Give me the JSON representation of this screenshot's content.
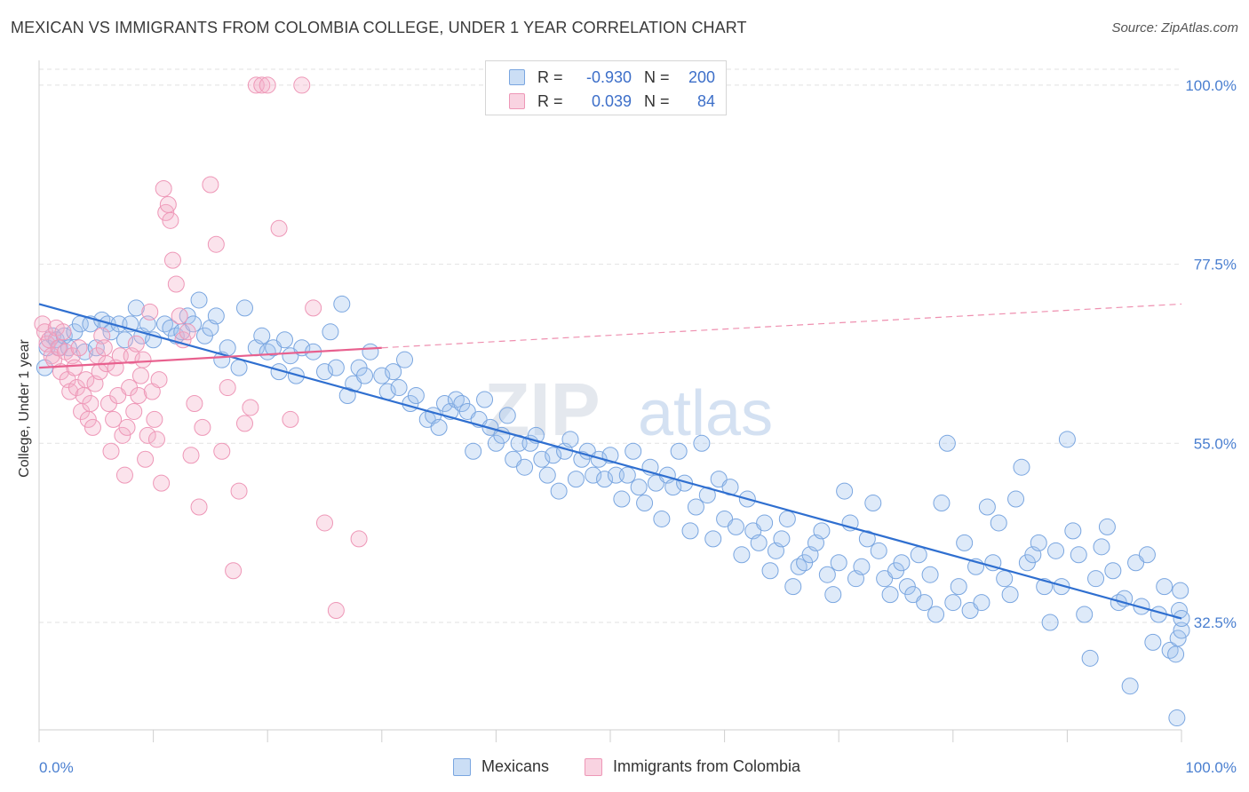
{
  "title": "MEXICAN VS IMMIGRANTS FROM COLOMBIA COLLEGE, UNDER 1 YEAR CORRELATION CHART",
  "source": "Source: ZipAtlas.com",
  "watermark": {
    "part1": "ZIP",
    "part2": "atlas"
  },
  "legend": {
    "rows": [
      {
        "r_label": "R =",
        "r_value": "-0.930",
        "n_label": "N =",
        "n_value": "200"
      },
      {
        "r_label": "R =",
        "r_value": "0.039",
        "n_label": "N =",
        "n_value": "84"
      }
    ]
  },
  "chart_data": {
    "type": "scatter",
    "title": "MEXICAN VS IMMIGRANTS FROM COLOMBIA COLLEGE, UNDER 1 YEAR CORRELATION CHART",
    "xlabel": "",
    "ylabel": "College, Under 1 year",
    "xlim": [
      0,
      100
    ],
    "ylim": [
      19,
      102
    ],
    "x_tick_labels": [
      "0.0%",
      "100.0%"
    ],
    "y_ticks": [
      {
        "value": 100,
        "label": "100.0%"
      },
      {
        "value": 77.5,
        "label": "77.5%"
      },
      {
        "value": 55,
        "label": "55.0%"
      },
      {
        "value": 32.5,
        "label": "32.5%"
      }
    ],
    "grid": true,
    "legend_position": "bottom-center",
    "series": [
      {
        "name": "Mexicans",
        "color": "#8db4e8",
        "fill": "rgba(160,194,237,0.35)",
        "stroke": "#7aa6e0",
        "R": -0.93,
        "N": 200,
        "trend": {
          "x0": 0,
          "y0": 72.5,
          "x1": 100,
          "y1": 33,
          "color": "#2f6fd0"
        },
        "points": [
          [
            0.5,
            64.5
          ],
          [
            0.7,
            67
          ],
          [
            1.2,
            68.5
          ],
          [
            1.5,
            68
          ],
          [
            1.8,
            67
          ],
          [
            2.2,
            68.5
          ],
          [
            2.6,
            67
          ],
          [
            3.1,
            69
          ],
          [
            3.6,
            70
          ],
          [
            4.0,
            66.5
          ],
          [
            4.5,
            70
          ],
          [
            5,
            67
          ],
          [
            5.5,
            70.5
          ],
          [
            6,
            70
          ],
          [
            6.3,
            69
          ],
          [
            7,
            70
          ],
          [
            7.5,
            68
          ],
          [
            8,
            70
          ],
          [
            8.5,
            72
          ],
          [
            9,
            68.5
          ],
          [
            9.5,
            70
          ],
          [
            10,
            68
          ],
          [
            11,
            70
          ],
          [
            11.5,
            69.5
          ],
          [
            12,
            68.5
          ],
          [
            12.5,
            69
          ],
          [
            13,
            71
          ],
          [
            13.5,
            70
          ],
          [
            14,
            73
          ],
          [
            14.5,
            68.5
          ],
          [
            15,
            69.5
          ],
          [
            15.5,
            71
          ],
          [
            16,
            65.5
          ],
          [
            16.5,
            67
          ],
          [
            17.5,
            64.5
          ],
          [
            18,
            72
          ],
          [
            19,
            67
          ],
          [
            19.5,
            68.5
          ],
          [
            20,
            66.5
          ],
          [
            20.5,
            67
          ],
          [
            21,
            64
          ],
          [
            21.5,
            68
          ],
          [
            22,
            66
          ],
          [
            22.5,
            63.5
          ],
          [
            23,
            67
          ],
          [
            24,
            66.5
          ],
          [
            25,
            64
          ],
          [
            25.5,
            69
          ],
          [
            26,
            64.5
          ],
          [
            26.5,
            72.5
          ],
          [
            27,
            61
          ],
          [
            27.5,
            62.5
          ],
          [
            28,
            64.5
          ],
          [
            28.5,
            63.5
          ],
          [
            29,
            66.5
          ],
          [
            30,
            63.5
          ],
          [
            30.5,
            61.5
          ],
          [
            31,
            64
          ],
          [
            31.5,
            62
          ],
          [
            32,
            65.5
          ],
          [
            32.5,
            60
          ],
          [
            33,
            61
          ],
          [
            34,
            58
          ],
          [
            34.5,
            58.5
          ],
          [
            35,
            57
          ],
          [
            35.5,
            60
          ],
          [
            36,
            59
          ],
          [
            36.5,
            60.5
          ],
          [
            37,
            60
          ],
          [
            37.5,
            59
          ],
          [
            38,
            54
          ],
          [
            38.5,
            58
          ],
          [
            39,
            60.5
          ],
          [
            39.5,
            57
          ],
          [
            40,
            55
          ],
          [
            40.5,
            56
          ],
          [
            41,
            58.5
          ],
          [
            41.5,
            53
          ],
          [
            42,
            55
          ],
          [
            42.5,
            52
          ],
          [
            43,
            55
          ],
          [
            43.5,
            56
          ],
          [
            44,
            53
          ],
          [
            44.5,
            51
          ],
          [
            45,
            53.5
          ],
          [
            45.5,
            49
          ],
          [
            46,
            54
          ],
          [
            46.5,
            55.5
          ],
          [
            47,
            50.5
          ],
          [
            47.5,
            53
          ],
          [
            48,
            54
          ],
          [
            48.5,
            51
          ],
          [
            49,
            53
          ],
          [
            49.5,
            50.5
          ],
          [
            50,
            53.5
          ],
          [
            50.5,
            51
          ],
          [
            51,
            48
          ],
          [
            51.5,
            51
          ],
          [
            52,
            54
          ],
          [
            52.5,
            49.5
          ],
          [
            53,
            47.5
          ],
          [
            53.5,
            52
          ],
          [
            54,
            50
          ],
          [
            54.5,
            45.5
          ],
          [
            55,
            51
          ],
          [
            55.5,
            49.5
          ],
          [
            56,
            54
          ],
          [
            56.5,
            50
          ],
          [
            57,
            44
          ],
          [
            57.5,
            47
          ],
          [
            58,
            55
          ],
          [
            58.5,
            48.5
          ],
          [
            59,
            43
          ],
          [
            59.5,
            50.5
          ],
          [
            60,
            45.5
          ],
          [
            60.5,
            49.5
          ],
          [
            61,
            44.5
          ],
          [
            61.5,
            41
          ],
          [
            62,
            48
          ],
          [
            62.5,
            44
          ],
          [
            63,
            42.5
          ],
          [
            63.5,
            45
          ],
          [
            64,
            39
          ],
          [
            64.5,
            41.5
          ],
          [
            65,
            43
          ],
          [
            65.5,
            45.5
          ],
          [
            66,
            37
          ],
          [
            66.5,
            39.5
          ],
          [
            67,
            40
          ],
          [
            67.5,
            41
          ],
          [
            68,
            42.5
          ],
          [
            68.5,
            44
          ],
          [
            69,
            38.5
          ],
          [
            69.5,
            36
          ],
          [
            70,
            40
          ],
          [
            70.5,
            49
          ],
          [
            71,
            45
          ],
          [
            71.5,
            38
          ],
          [
            72,
            39.5
          ],
          [
            72.5,
            43
          ],
          [
            73,
            47.5
          ],
          [
            73.5,
            41.5
          ],
          [
            74,
            38
          ],
          [
            74.5,
            36
          ],
          [
            75,
            39
          ],
          [
            75.5,
            40
          ],
          [
            76,
            37
          ],
          [
            76.5,
            36
          ],
          [
            77,
            41
          ],
          [
            77.5,
            35
          ],
          [
            78,
            38.5
          ],
          [
            78.5,
            33.5
          ],
          [
            79,
            47.5
          ],
          [
            79.5,
            55
          ],
          [
            80,
            35
          ],
          [
            80.5,
            37
          ],
          [
            81,
            42.5
          ],
          [
            81.5,
            34
          ],
          [
            82,
            39.5
          ],
          [
            82.5,
            35
          ],
          [
            83,
            47
          ],
          [
            83.5,
            40
          ],
          [
            84,
            45
          ],
          [
            84.5,
            38
          ],
          [
            85,
            36
          ],
          [
            85.5,
            48
          ],
          [
            86,
            52
          ],
          [
            86.5,
            40
          ],
          [
            87,
            41
          ],
          [
            87.5,
            42.5
          ],
          [
            88,
            37
          ],
          [
            88.5,
            32.5
          ],
          [
            89,
            41.5
          ],
          [
            89.5,
            37
          ],
          [
            90,
            55.5
          ],
          [
            90.5,
            44
          ],
          [
            91,
            41
          ],
          [
            91.5,
            33.5
          ],
          [
            92,
            28
          ],
          [
            92.5,
            38
          ],
          [
            93,
            42
          ],
          [
            93.5,
            44.5
          ],
          [
            94,
            39
          ],
          [
            94.5,
            35
          ],
          [
            95,
            35.5
          ],
          [
            95.5,
            24.5
          ],
          [
            96,
            40
          ],
          [
            96.5,
            34.5
          ],
          [
            97,
            41
          ],
          [
            97.5,
            30
          ],
          [
            98,
            33.5
          ],
          [
            98.5,
            37
          ],
          [
            99,
            29
          ],
          [
            99.5,
            28.5
          ],
          [
            99.6,
            20.5
          ],
          [
            99.7,
            30.5
          ],
          [
            99.8,
            34
          ],
          [
            99.9,
            36.5
          ],
          [
            100,
            31.5
          ],
          [
            100,
            33
          ]
        ]
      },
      {
        "name": "Immigrants from Colombia",
        "color": "#f2a3c0",
        "fill": "rgba(244,174,200,0.35)",
        "stroke": "#ee97b7",
        "R": 0.039,
        "N": 84,
        "trend": {
          "x0": 0,
          "y0": 64.5,
          "x1": 30,
          "y1": 67,
          "color": "#e8608e",
          "dashed_to": {
            "x1": 100,
            "y1": 72.5
          }
        },
        "points": [
          [
            0.3,
            70
          ],
          [
            0.5,
            69
          ],
          [
            0.7,
            67.5
          ],
          [
            0.9,
            68
          ],
          [
            1.1,
            66
          ],
          [
            1.3,
            65.5
          ],
          [
            1.5,
            69.5
          ],
          [
            1.7,
            67
          ],
          [
            1.9,
            64
          ],
          [
            2.1,
            69
          ],
          [
            2.3,
            66.5
          ],
          [
            2.5,
            63
          ],
          [
            2.7,
            61.5
          ],
          [
            2.9,
            66
          ],
          [
            3.1,
            64.5
          ],
          [
            3.3,
            62
          ],
          [
            3.5,
            67
          ],
          [
            3.7,
            59
          ],
          [
            3.9,
            61
          ],
          [
            4.1,
            63
          ],
          [
            4.3,
            58
          ],
          [
            4.5,
            60
          ],
          [
            4.7,
            57
          ],
          [
            4.9,
            62.5
          ],
          [
            5.1,
            66
          ],
          [
            5.3,
            64
          ],
          [
            5.5,
            68.5
          ],
          [
            5.7,
            67
          ],
          [
            5.9,
            65
          ],
          [
            6.1,
            60
          ],
          [
            6.3,
            54
          ],
          [
            6.5,
            58
          ],
          [
            6.7,
            64.5
          ],
          [
            6.9,
            61
          ],
          [
            7.1,
            66
          ],
          [
            7.3,
            56
          ],
          [
            7.5,
            51
          ],
          [
            7.7,
            57
          ],
          [
            7.9,
            62
          ],
          [
            8.1,
            66
          ],
          [
            8.3,
            59
          ],
          [
            8.5,
            67.5
          ],
          [
            8.7,
            61
          ],
          [
            8.9,
            63.5
          ],
          [
            9.1,
            65.5
          ],
          [
            9.3,
            53
          ],
          [
            9.5,
            56
          ],
          [
            9.7,
            71.5
          ],
          [
            9.9,
            61.5
          ],
          [
            10.1,
            58
          ],
          [
            10.3,
            55.5
          ],
          [
            10.5,
            63
          ],
          [
            10.7,
            50
          ],
          [
            10.9,
            87
          ],
          [
            11.1,
            84
          ],
          [
            11.3,
            85
          ],
          [
            11.5,
            83
          ],
          [
            11.7,
            78
          ],
          [
            12,
            75
          ],
          [
            12.3,
            71
          ],
          [
            12.6,
            68
          ],
          [
            13,
            69
          ],
          [
            13.3,
            53.5
          ],
          [
            13.6,
            60
          ],
          [
            14,
            47
          ],
          [
            14.3,
            57
          ],
          [
            15,
            87.5
          ],
          [
            15.5,
            80
          ],
          [
            16,
            54
          ],
          [
            16.5,
            62
          ],
          [
            17,
            39
          ],
          [
            17.5,
            49
          ],
          [
            18,
            57.5
          ],
          [
            18.5,
            59.5
          ],
          [
            19,
            100
          ],
          [
            19.5,
            100
          ],
          [
            20,
            100
          ],
          [
            21,
            82
          ],
          [
            22,
            58
          ],
          [
            23,
            100
          ],
          [
            24,
            72
          ],
          [
            25,
            45
          ],
          [
            26,
            34
          ],
          [
            28,
            43
          ]
        ]
      }
    ]
  }
}
